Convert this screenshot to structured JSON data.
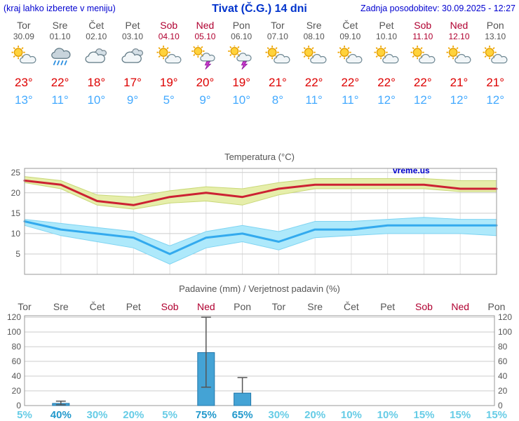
{
  "header": {
    "menu_hint": "(kraj lahko izberete v meniju)",
    "title": "Tivat (Č.G.) 14 dni",
    "last_update": "Zadnja posodobitev: 30.09.2025 - 12:27"
  },
  "colors": {
    "header_blue": "#0000d0",
    "title_blue": "#0033cc",
    "weekday": "#555555",
    "weekend": "#b00030",
    "temp_high": "#dd0000",
    "temp_low": "#44aaff",
    "grid": "#cccccc",
    "axis_text": "#555555",
    "bar_fill": "#44a3d5",
    "bar_edge": "#2277aa",
    "whisker": "#555555",
    "prob_high": "#2299cc",
    "prob_low": "#66cce6",
    "watermark": "#0000cc"
  },
  "days": [
    {
      "name": "Tor",
      "date": "30.09",
      "icon": "sun-cloud",
      "high": "23°",
      "low": "13°",
      "weekend": false
    },
    {
      "name": "Sre",
      "date": "01.10",
      "icon": "rain",
      "high": "22°",
      "low": "11°",
      "weekend": false
    },
    {
      "name": "Čet",
      "date": "02.10",
      "icon": "cloudy",
      "high": "18°",
      "low": "10°",
      "weekend": false
    },
    {
      "name": "Pet",
      "date": "03.10",
      "icon": "cloudy",
      "high": "17°",
      "low": "9°",
      "weekend": false
    },
    {
      "name": "Sob",
      "date": "04.10",
      "icon": "sun-cloud",
      "high": "19°",
      "low": "5°",
      "weekend": true
    },
    {
      "name": "Ned",
      "date": "05.10",
      "icon": "thunder",
      "high": "20°",
      "low": "9°",
      "weekend": true
    },
    {
      "name": "Pon",
      "date": "06.10",
      "icon": "thunder",
      "high": "19°",
      "low": "10°",
      "weekend": false
    },
    {
      "name": "Tor",
      "date": "07.10",
      "icon": "sun-cloud",
      "high": "21°",
      "low": "8°",
      "weekend": false
    },
    {
      "name": "Sre",
      "date": "08.10",
      "icon": "sun-cloud",
      "high": "22°",
      "low": "11°",
      "weekend": false
    },
    {
      "name": "Čet",
      "date": "09.10",
      "icon": "sun-cloud",
      "high": "22°",
      "low": "11°",
      "weekend": false
    },
    {
      "name": "Pet",
      "date": "10.10",
      "icon": "sun-cloud",
      "high": "22°",
      "low": "12°",
      "weekend": false
    },
    {
      "name": "Sob",
      "date": "11.10",
      "icon": "sun-cloud",
      "high": "22°",
      "low": "12°",
      "weekend": true
    },
    {
      "name": "Ned",
      "date": "12.10",
      "icon": "sun-cloud",
      "high": "21°",
      "low": "12°",
      "weekend": true
    },
    {
      "name": "Pon",
      "date": "13.10",
      "icon": "sun-cloud",
      "high": "21°",
      "low": "12°",
      "weekend": false
    }
  ],
  "chart_data": [
    {
      "type": "line",
      "title": "Temperatura (°C)",
      "watermark": "vreme.us",
      "grid": true,
      "ylim": [
        0,
        26
      ],
      "yticks": [
        5,
        10,
        15,
        20,
        25
      ],
      "categories": [
        "Tor",
        "Sre",
        "Čet",
        "Pet",
        "Sob",
        "Ned",
        "Pon",
        "Tor",
        "Sre",
        "Čet",
        "Pet",
        "Sob",
        "Ned",
        "Pon"
      ],
      "series": [
        {
          "name": "temp-max",
          "color": "#cc2233",
          "values": [
            23,
            22,
            18,
            17,
            19,
            20,
            19,
            21,
            22,
            22,
            22,
            22,
            21,
            21
          ],
          "band_upper": [
            24,
            23,
            19.5,
            19,
            20.5,
            21.5,
            21,
            22.5,
            23.5,
            23.5,
            23.5,
            23.5,
            23,
            23
          ],
          "band_lower": [
            22.5,
            21,
            17,
            16,
            17.5,
            18,
            17,
            19.5,
            21,
            21,
            21,
            21,
            20.3,
            20.3
          ],
          "band_color": "#e6eeaa",
          "band_edge": "#c9d878"
        },
        {
          "name": "temp-min",
          "color": "#33aaee",
          "values": [
            13,
            11,
            10,
            9,
            5,
            9,
            10,
            8,
            11,
            11,
            12,
            12,
            12,
            12
          ],
          "band_upper": [
            13.5,
            12.5,
            11.5,
            10.5,
            7,
            10.5,
            12,
            10.5,
            13,
            13,
            13.5,
            14,
            13.5,
            13.5
          ],
          "band_lower": [
            12,
            9.5,
            8,
            6.5,
            2.5,
            6.5,
            8,
            6,
            9,
            9.5,
            10,
            10,
            10,
            9.5
          ],
          "band_color": "#aee9fb",
          "band_edge": "#7fd4f2"
        }
      ]
    },
    {
      "type": "bar",
      "title": "Padavine (mm) / Verjetnost padavin (%)",
      "grid": true,
      "ylim": [
        0,
        122
      ],
      "yticks": [
        0,
        20,
        40,
        60,
        80,
        100,
        120
      ],
      "categories": [
        "Tor",
        "Sre",
        "Čet",
        "Pet",
        "Sob",
        "Ned",
        "Pon",
        "Tor",
        "Sre",
        "Čet",
        "Pet",
        "Sob",
        "Ned",
        "Pon"
      ],
      "values": [
        0,
        3,
        0,
        0,
        0,
        72,
        17,
        0,
        0,
        0,
        0,
        0,
        0,
        0
      ],
      "whisker_low": [
        null,
        1,
        null,
        null,
        null,
        25,
        null,
        null,
        null,
        null,
        null,
        null,
        null,
        null
      ],
      "whisker_high": [
        null,
        6,
        null,
        null,
        null,
        120,
        38,
        null,
        null,
        null,
        null,
        null,
        null,
        null
      ],
      "probabilities": [
        "5%",
        "40%",
        "30%",
        "20%",
        "5%",
        "75%",
        "65%",
        "30%",
        "20%",
        "10%",
        "10%",
        "15%",
        "15%",
        "15%"
      ],
      "prob_emphasis": [
        false,
        true,
        false,
        false,
        false,
        true,
        true,
        false,
        false,
        false,
        false,
        false,
        false,
        false
      ]
    }
  ]
}
